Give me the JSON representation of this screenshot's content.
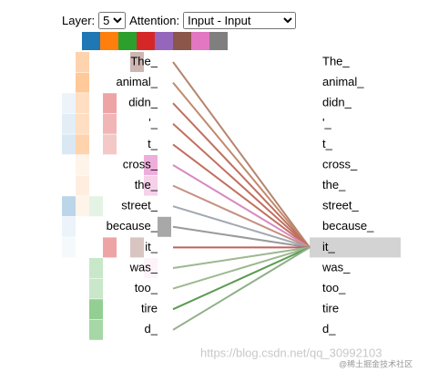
{
  "controls": {
    "layer_label": "Layer:",
    "layer_value": "5",
    "attention_label": "Attention:",
    "attention_value": "Input - Input"
  },
  "heads": [
    "#1f77b4",
    "#ff7f0e",
    "#2ca02c",
    "#d62728",
    "#9467bd",
    "#8c564b",
    "#e377c2",
    "#7f7f7f"
  ],
  "tokens": [
    "The_",
    "animal_",
    "didn_",
    "'_",
    "t_",
    "cross_",
    "the_",
    "street_",
    "because_",
    "it_",
    "was_",
    "too_",
    "tire",
    "d_"
  ],
  "selected": 9,
  "line_colors": [
    "#b5856f",
    "#c08a6a",
    "#c07060",
    "#c07060",
    "#c07060",
    "#d68ac0",
    "#c59080",
    "#a0a8b0",
    "#9a9a9a",
    "#c06060",
    "#9cb890",
    "#9cb890",
    "#5a9a50",
    "#90b088"
  ],
  "attention": [
    [
      0,
      0.4,
      0,
      0,
      0,
      0.5,
      0,
      0
    ],
    [
      0,
      0.5,
      0,
      0,
      0,
      0,
      0,
      0
    ],
    [
      0.1,
      0.3,
      0,
      0.5,
      0,
      0,
      0,
      0
    ],
    [
      0.15,
      0.3,
      0,
      0.4,
      0,
      0,
      0,
      0
    ],
    [
      0.2,
      0.4,
      0,
      0.3,
      0,
      0,
      0,
      0
    ],
    [
      0,
      0.1,
      0,
      0,
      0,
      0,
      0.7,
      0
    ],
    [
      0,
      0.15,
      0,
      0,
      0,
      0,
      0.4,
      0
    ],
    [
      0.35,
      0.1,
      0.15,
      0,
      0,
      0,
      0,
      0
    ],
    [
      0.1,
      0,
      0,
      0,
      0,
      0,
      0,
      0.8
    ],
    [
      0.05,
      0,
      0,
      0.5,
      0,
      0.4,
      0,
      0
    ],
    [
      0,
      0,
      0.3,
      0,
      0,
      0,
      0.1,
      0
    ],
    [
      0,
      0,
      0.3,
      0,
      0,
      0,
      0,
      0
    ],
    [
      0,
      0,
      0.6,
      0,
      0,
      0,
      0,
      0
    ],
    [
      0,
      0,
      0.5,
      0,
      0,
      0,
      0,
      0
    ]
  ],
  "watermark": "https://blog.csdn.net/qq_30992103",
  "watermark_site": "@稀土掘金技术社区"
}
